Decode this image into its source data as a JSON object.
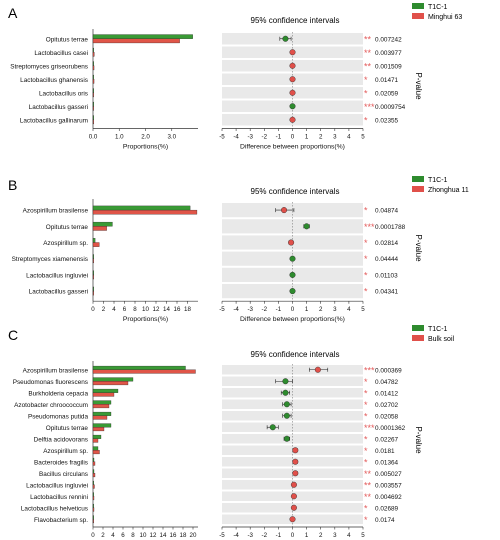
{
  "panels": [
    {
      "letter": "A",
      "ci_title": "95% confidence intervals",
      "pvalue_label": "P-value",
      "legend": [
        {
          "label": "T1C-1",
          "color": "#2e8b2e"
        },
        {
          "label": "Minghui 63",
          "color": "#e0504a"
        }
      ]
    },
    {
      "letter": "B",
      "ci_title": "95% confidence intervals",
      "pvalue_label": "P-value",
      "legend": [
        {
          "label": "T1C-1",
          "color": "#2e8b2e"
        },
        {
          "label": "Zhonghua 11",
          "color": "#e0504a"
        }
      ]
    },
    {
      "letter": "C",
      "ci_title": "95% confidence intervals",
      "pvalue_label": "P-value",
      "legend": [
        {
          "label": "T1C-1",
          "color": "#2e8b2e"
        },
        {
          "label": "Bulk soil",
          "color": "#e0504a"
        }
      ]
    }
  ],
  "chart_data": [
    {
      "type": "bar",
      "panel": "A",
      "categories": [
        "Opitutus terrae",
        "Lactobacillus casei",
        "Streptomyces griseorubens",
        "Lactobacillus ghanensis",
        "Lactobacillus oris",
        "Lactobacillus gasseri",
        "Lactobacillus gallinarum"
      ],
      "series": [
        {
          "name": "T1C-1",
          "values": [
            3.8,
            0.03,
            0.03,
            0.02,
            0.02,
            0.02,
            0.02
          ]
        },
        {
          "name": "Minghui 63",
          "values": [
            3.3,
            0.05,
            0.04,
            0.04,
            0.03,
            0.03,
            0.02
          ]
        }
      ],
      "xlabel": "Proportions(%)",
      "xticks": [
        "0.0",
        "1.0",
        "2.0",
        "3.0"
      ],
      "xlim": [
        0,
        4.0
      ],
      "tick_values": [
        0,
        1,
        2,
        3
      ]
    },
    {
      "type": "scatter",
      "panel": "A",
      "title": "95% confidence intervals",
      "categories": [
        "Opitutus terrae",
        "Lactobacillus casei",
        "Streptomyces griseorubens",
        "Lactobacillus ghanensis",
        "Lactobacillus oris",
        "Lactobacillus gasseri",
        "Lactobacillus gallinarum"
      ],
      "diff": [
        -0.5,
        0.0,
        0.0,
        0.0,
        0.0,
        0.0,
        0.0
      ],
      "ci_low": [
        -0.9,
        -0.05,
        -0.05,
        -0.05,
        -0.05,
        -0.05,
        -0.05
      ],
      "ci_high": [
        -0.1,
        0.05,
        0.05,
        0.05,
        0.05,
        0.05,
        0.05
      ],
      "point_series": [
        "T1C-1",
        "Minghui 63",
        "Minghui 63",
        "Minghui 63",
        "Minghui 63",
        "T1C-1",
        "Minghui 63"
      ],
      "stars": [
        "**",
        "**",
        "**",
        "*",
        "*",
        "***",
        "*"
      ],
      "pvalues": [
        "0.007242",
        "0.003977",
        "0.001509",
        "0.01471",
        "0.02059",
        "0.0009754",
        "0.02355"
      ],
      "xlabel": "Difference between proportions(%)",
      "xticks": [
        "-5",
        "-4",
        "-3",
        "-2",
        "-1",
        "0",
        "1",
        "2",
        "3",
        "4",
        "5"
      ],
      "xlim": [
        -5,
        5
      ]
    },
    {
      "type": "bar",
      "panel": "B",
      "categories": [
        "Azospirillum brasilense",
        "Opitutus terrae",
        "Azospirillum sp.",
        "Streptomyces xiamenensis",
        "Lactobacillus ingluviei",
        "Lactobacillus gasseri"
      ],
      "series": [
        {
          "name": "T1C-1",
          "values": [
            18.5,
            3.7,
            0.4,
            0.05,
            0.04,
            0.03
          ]
        },
        {
          "name": "Zhonghua 11",
          "values": [
            19.8,
            2.6,
            1.2,
            0.08,
            0.06,
            0.05
          ]
        }
      ],
      "xlabel": "Proportions(%)",
      "xticks": [
        "0",
        "2",
        "4",
        "6",
        "8",
        "10",
        "12",
        "14",
        "16",
        "18"
      ],
      "xlim": [
        0,
        20
      ],
      "tick_values": [
        0,
        2,
        4,
        6,
        8,
        10,
        12,
        14,
        16,
        18
      ]
    },
    {
      "type": "scatter",
      "panel": "B",
      "title": "95% confidence intervals",
      "categories": [
        "Azospirillum brasilense",
        "Opitutus terrae",
        "Azospirillum sp.",
        "Streptomyces xiamenensis",
        "Lactobacillus ingluviei",
        "Lactobacillus gasseri"
      ],
      "diff": [
        -0.6,
        1.0,
        -0.1,
        0.0,
        0.0,
        0.0
      ],
      "ci_low": [
        -1.2,
        0.8,
        -0.25,
        -0.05,
        -0.05,
        -0.05
      ],
      "ci_high": [
        0.1,
        1.2,
        0.05,
        0.05,
        0.05,
        0.05
      ],
      "point_series": [
        "Zhonghua 11",
        "T1C-1",
        "Zhonghua 11",
        "T1C-1",
        "T1C-1",
        "T1C-1"
      ],
      "stars": [
        "*",
        "***",
        "*",
        "*",
        "*",
        "*"
      ],
      "pvalues": [
        "0.04874",
        "0.0001788",
        "0.02814",
        "0.04444",
        "0.01103",
        "0.04341"
      ],
      "xlabel": "Difference between proportions(%)",
      "xticks": [
        "-5",
        "-4",
        "-3",
        "-2",
        "-1",
        "0",
        "1",
        "2",
        "3",
        "4",
        "5"
      ],
      "xlim": [
        -5,
        5
      ]
    },
    {
      "type": "bar",
      "panel": "C",
      "categories": [
        "Azospirillum brasilense",
        "Pseudomonas fluorescens",
        "Burkholderia cepacia",
        "Azotobacter chroococcum",
        "Pseudomonas putida",
        "Opitutus terrae",
        "Delftia acidovorans",
        "Azospirillum sp.",
        "Bacteroides fragilis",
        "Bacillus circulans",
        "Lactobacillus ingluviei",
        "Lactobacillus rennini",
        "Lactobacillus helveticus",
        "Flavobacterium sp."
      ],
      "series": [
        {
          "name": "T1C-1",
          "values": [
            18.5,
            8.0,
            5.0,
            3.6,
            3.6,
            3.6,
            1.6,
            1.0,
            0.2,
            0.2,
            0.1,
            0.1,
            0.1,
            0.05
          ]
        },
        {
          "name": "Bulk soil",
          "values": [
            20.5,
            7.0,
            4.2,
            3.2,
            2.8,
            2.2,
            1.0,
            1.3,
            0.4,
            0.4,
            0.3,
            0.2,
            0.2,
            0.1
          ]
        }
      ],
      "xlabel": "Proportions(%)",
      "xticks": [
        "0",
        "2",
        "4",
        "6",
        "8",
        "10",
        "12",
        "14",
        "16",
        "18",
        "20"
      ],
      "xlim": [
        0,
        21
      ],
      "tick_values": [
        0,
        2,
        4,
        6,
        8,
        10,
        12,
        14,
        16,
        18,
        20
      ]
    },
    {
      "type": "scatter",
      "panel": "C",
      "title": "95% confidence intervals",
      "categories": [
        "Azospirillum brasilense",
        "Pseudomonas fluorescens",
        "Burkholderia cepacia",
        "Azotobacter chroococcum",
        "Pseudomonas putida",
        "Opitutus terrae",
        "Delftia acidovorans",
        "Azospirillum sp.",
        "Bacteroides fragilis",
        "Bacillus circulans",
        "Lactobacillus ingluviei",
        "Lactobacillus rennini",
        "Lactobacillus helveticus",
        "Flavobacterium sp."
      ],
      "diff": [
        1.8,
        -0.5,
        -0.5,
        -0.4,
        -0.4,
        -1.4,
        -0.4,
        0.2,
        0.2,
        0.2,
        0.1,
        0.1,
        0.1,
        0.0
      ],
      "ci_low": [
        1.2,
        -1.2,
        -0.8,
        -0.7,
        -0.7,
        -1.8,
        -0.6,
        0.05,
        0.05,
        0.05,
        0.0,
        0.0,
        0.0,
        -0.05
      ],
      "ci_high": [
        2.5,
        0.0,
        -0.2,
        -0.1,
        -0.1,
        -1.0,
        -0.2,
        0.35,
        0.35,
        0.35,
        0.2,
        0.2,
        0.2,
        0.05
      ],
      "point_series": [
        "Bulk soil",
        "T1C-1",
        "T1C-1",
        "T1C-1",
        "T1C-1",
        "T1C-1",
        "T1C-1",
        "Bulk soil",
        "Bulk soil",
        "Bulk soil",
        "Bulk soil",
        "Bulk soil",
        "Bulk soil",
        "Bulk soil"
      ],
      "stars": [
        "***",
        "*",
        "*",
        "*",
        "*",
        "***",
        "*",
        "*",
        "*",
        "**",
        "**",
        "**",
        "*",
        "*"
      ],
      "pvalues": [
        "0.000369",
        "0.04782",
        "0.01412",
        "0.02702",
        "0.02058",
        "0.0001362",
        "0.02267",
        "0.0181",
        "0.01364",
        "0.005027",
        "0.003557",
        "0.004692",
        "0.02689",
        "0.0174"
      ],
      "xlabel": "Difference between proportions(%)",
      "xticks": [
        "-5",
        "-4",
        "-3",
        "-2",
        "-1",
        "0",
        "1",
        "2",
        "3",
        "4",
        "5"
      ],
      "xlim": [
        -5,
        5
      ]
    }
  ]
}
